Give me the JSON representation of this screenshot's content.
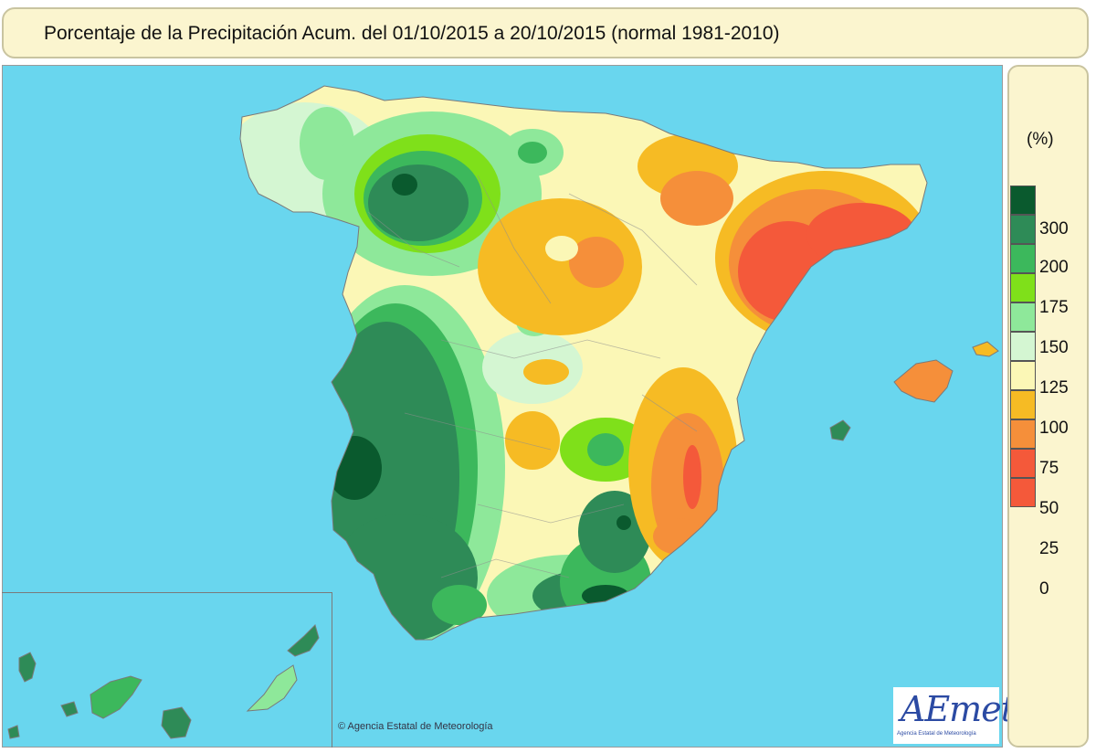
{
  "title": "Porcentaje de la Precipitación Acum. del 01/10/2015 a  20/10/2015  (normal 1981-2010)",
  "legend": {
    "unit": "(%)",
    "classes": [
      {
        "label": "300",
        "color": "#0a5a2e"
      },
      {
        "label": "200",
        "color": "#2e8b57"
      },
      {
        "label": "175",
        "color": "#3cb85c"
      },
      {
        "label": "150",
        "color": "#7fe01a"
      },
      {
        "label": "125",
        "color": "#8ee89a"
      },
      {
        "label": "100",
        "color": "#d4f6d2"
      },
      {
        "label": "75",
        "color": "#fbf7b6"
      },
      {
        "label": "50",
        "color": "#f6bb24"
      },
      {
        "label": "25",
        "color": "#f58f3a"
      },
      {
        "label": "0",
        "color": "#f4593a"
      }
    ],
    "lowest_color": "#f4593a"
  },
  "colors": {
    "sea": "#69d6ee",
    "border": "#9a9a9a",
    "boundaries": "#8f8f8f"
  },
  "copyright": "© Agencia Estatal de Meteorología",
  "logo": {
    "word": "AEmet",
    "subtitle": "Agencia Estatal de Meteorología"
  }
}
